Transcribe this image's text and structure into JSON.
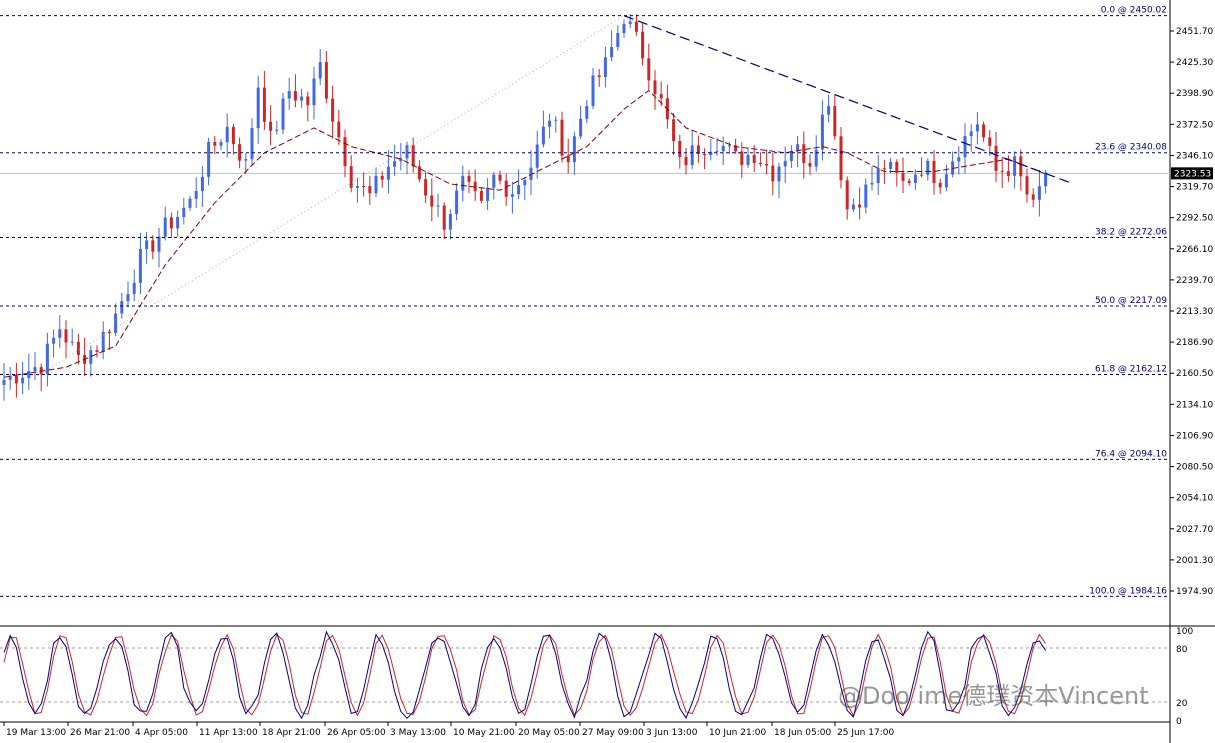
{
  "chart_data": [
    {
      "type": "candlestick",
      "title": "",
      "y_axis_ticks": [
        "2451.70",
        "2425.30",
        "2398.90",
        "2372.50",
        "2346.10",
        "2319.70",
        "2292.50",
        "2266.10",
        "2239.70",
        "2213.30",
        "2186.90",
        "2160.50",
        "2134.10",
        "2106.90",
        "2080.50",
        "2054.10",
        "2027.70",
        "2001.30",
        "1974.90"
      ],
      "ylim": [
        1962,
        2461
      ],
      "x_axis_ticks": [
        "19 Mar 13:00",
        "26 Mar 21:00",
        "4 Apr 05:00",
        "11 Apr 13:00",
        "18 Apr 21:00",
        "26 Apr 05:00",
        "3 May 13:00",
        "10 May 21:00",
        "20 May 05:00",
        "27 May 09:00",
        "3 Jun 13:00",
        "10 Jun 21:00",
        "18 Jun 05:00",
        "25 Jun 17:00"
      ],
      "current_price": "2323.53",
      "current_price_value": 2323.53,
      "anchor_path": [
        [
          0,
          2158
        ],
        [
          6,
          2170
        ],
        [
          9,
          2200
        ],
        [
          12,
          2175
        ],
        [
          15,
          2185
        ],
        [
          18,
          2210
        ],
        [
          22,
          2255
        ],
        [
          26,
          2280
        ],
        [
          30,
          2300
        ],
        [
          33,
          2340
        ],
        [
          36,
          2360
        ],
        [
          39,
          2330
        ],
        [
          41,
          2395
        ],
        [
          43,
          2350
        ],
        [
          46,
          2390
        ],
        [
          49,
          2380
        ],
        [
          51,
          2410
        ],
        [
          53,
          2370
        ],
        [
          56,
          2320
        ],
        [
          59,
          2305
        ],
        [
          62,
          2330
        ],
        [
          65,
          2340
        ],
        [
          68,
          2310
        ],
        [
          71,
          2285
        ],
        [
          74,
          2315
        ],
        [
          77,
          2295
        ],
        [
          79,
          2320
        ],
        [
          82,
          2310
        ],
        [
          85,
          2330
        ],
        [
          88,
          2370
        ],
        [
          91,
          2335
        ],
        [
          94,
          2385
        ],
        [
          97,
          2410
        ],
        [
          100,
          2450
        ],
        [
          103,
          2420
        ],
        [
          106,
          2380
        ],
        [
          109,
          2330
        ],
        [
          112,
          2345
        ],
        [
          115,
          2350
        ],
        [
          118,
          2335
        ],
        [
          121,
          2340
        ],
        [
          124,
          2325
        ],
        [
          127,
          2345
        ],
        [
          130,
          2335
        ],
        [
          133,
          2385
        ],
        [
          136,
          2295
        ],
        [
          139,
          2310
        ],
        [
          142,
          2330
        ],
        [
          145,
          2315
        ],
        [
          148,
          2330
        ],
        [
          151,
          2320
        ],
        [
          154,
          2345
        ],
        [
          157,
          2365
        ],
        [
          160,
          2325
        ],
        [
          163,
          2330
        ],
        [
          166,
          2295
        ],
        [
          168,
          2325
        ]
      ],
      "moving_average": {
        "color": "#8b0000",
        "points": [
          [
            0,
            2160
          ],
          [
            10,
            2168
          ],
          [
            18,
            2185
          ],
          [
            26,
            2250
          ],
          [
            34,
            2300
          ],
          [
            42,
            2340
          ],
          [
            50,
            2360
          ],
          [
            56,
            2345
          ],
          [
            64,
            2335
          ],
          [
            72,
            2315
          ],
          [
            80,
            2310
          ],
          [
            88,
            2330
          ],
          [
            94,
            2345
          ],
          [
            100,
            2375
          ],
          [
            104,
            2390
          ],
          [
            110,
            2360
          ],
          [
            118,
            2345
          ],
          [
            126,
            2340
          ],
          [
            132,
            2345
          ],
          [
            136,
            2340
          ],
          [
            142,
            2325
          ],
          [
            150,
            2325
          ],
          [
            156,
            2330
          ],
          [
            162,
            2335
          ],
          [
            168,
            2323
          ]
        ]
      },
      "stochastic": {
        "ticks": [
          "100",
          "80",
          "20",
          "0"
        ],
        "levels": [
          80,
          20
        ]
      },
      "fibonacci": [
        {
          "label": "0.0 @ 2450.02",
          "value": 2450.02
        },
        {
          "label": "23.6 @ 2340.08",
          "value": 2340.08
        },
        {
          "label": "38.2 @ 2272.06",
          "value": 2272.06
        },
        {
          "label": "50.0 @ 2217.09",
          "value": 2217.09
        },
        {
          "label": "61.8 @ 2162.12",
          "value": 2162.12
        },
        {
          "label": "76.4 @ 2094.10",
          "value": 2094.1
        },
        {
          "label": "100.0 @ 1984.16",
          "value": 1984.16
        }
      ],
      "trendline": {
        "from": [
          100,
          2450.02
        ],
        "to": [
          172,
          2316
        ]
      },
      "fib_anchor_line": {
        "from": [
          5,
          2160
        ],
        "to": [
          100,
          2450.02
        ]
      },
      "colors": {
        "bull": "#4169e1",
        "bear": "#cd2626",
        "stoch_main": "#00008b",
        "stoch_signal": "#cd2626",
        "price_tag": "#000000"
      }
    }
  ],
  "watermark": "@Doo   ime德璞资本Vincent"
}
